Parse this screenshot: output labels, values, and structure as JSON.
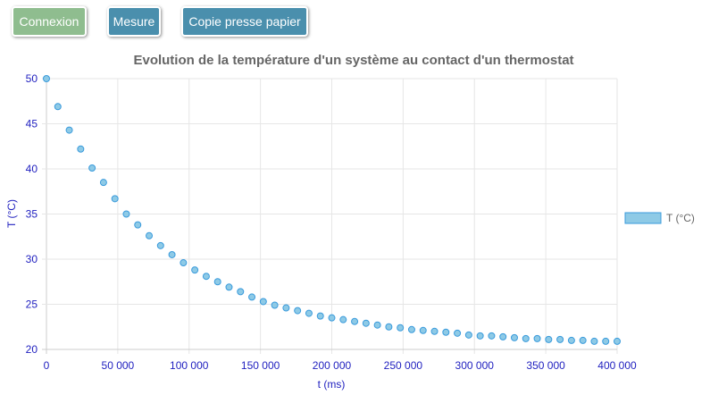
{
  "toolbar": {
    "connect_label": "Connexion",
    "measure_label": "Mesure",
    "copy_label": "Copie presse papier",
    "connect_color": "#8fbd8f",
    "action_color": "#4a8fad"
  },
  "chart_data": {
    "type": "scatter",
    "title": "Evolution de la température d'un système au contact d'un thermostat",
    "xlabel": "t (ms)",
    "ylabel": "T (°C)",
    "xlim": [
      0,
      400000
    ],
    "ylim": [
      20,
      50
    ],
    "xticks": [
      0,
      50000,
      100000,
      150000,
      200000,
      250000,
      300000,
      350000,
      400000
    ],
    "xtick_labels": [
      "0",
      "50 000",
      "100 000",
      "150 000",
      "200 000",
      "250 000",
      "300 000",
      "350 000",
      "400 000"
    ],
    "yticks": [
      20,
      25,
      30,
      35,
      40,
      45,
      50
    ],
    "ytick_labels": [
      "20",
      "25",
      "30",
      "35",
      "40",
      "45",
      "50"
    ],
    "grid": true,
    "legend_position": "right",
    "point_color": "#8ecae6",
    "point_border": "#3a9bdc",
    "tick_color": "#1f1fbf",
    "series": [
      {
        "name": "T (°C)",
        "x": [
          0,
          8000,
          16000,
          24000,
          32000,
          40000,
          48000,
          56000,
          64000,
          72000,
          80000,
          88000,
          96000,
          104000,
          112000,
          120000,
          128000,
          136000,
          144000,
          152000,
          160000,
          168000,
          176000,
          184000,
          192000,
          200000,
          208000,
          216000,
          224000,
          232000,
          240000,
          248000,
          256000,
          264000,
          272000,
          280000,
          288000,
          296000,
          304000,
          312000,
          320000,
          328000,
          336000,
          344000,
          352000,
          360000,
          368000,
          376000,
          384000,
          392000,
          400000
        ],
        "y": [
          50.0,
          46.9,
          44.3,
          42.2,
          40.1,
          38.5,
          36.7,
          35.0,
          33.8,
          32.6,
          31.5,
          30.5,
          29.6,
          28.8,
          28.1,
          27.5,
          26.9,
          26.4,
          25.8,
          25.3,
          24.9,
          24.6,
          24.3,
          24.0,
          23.7,
          23.5,
          23.3,
          23.1,
          22.9,
          22.7,
          22.5,
          22.4,
          22.2,
          22.1,
          22.0,
          21.9,
          21.8,
          21.6,
          21.5,
          21.5,
          21.4,
          21.3,
          21.2,
          21.2,
          21.1,
          21.1,
          21.0,
          21.0,
          20.9,
          20.9,
          20.9
        ]
      }
    ]
  }
}
